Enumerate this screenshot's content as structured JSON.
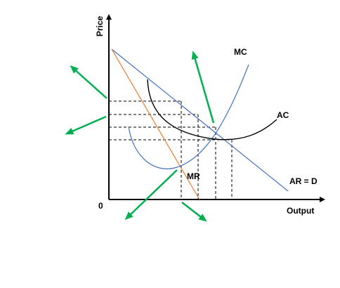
{
  "axes": {
    "y_label": "Price",
    "x_label": "Output",
    "origin_label": "0"
  },
  "curves": {
    "mc_label": "MC",
    "ac_label": "AC",
    "mr_label": "MR",
    "ar_label": "AR = D"
  },
  "colors": {
    "axis": "#000000",
    "demand_line": "#4472C4",
    "mc_curve": "#4472C4",
    "mr_line": "#ED7D31",
    "ac_curve": "#000000",
    "guide_lines": "#000000",
    "arrows": "#00B050"
  },
  "icons": {
    "arrow": "green-arrow-icon"
  }
}
